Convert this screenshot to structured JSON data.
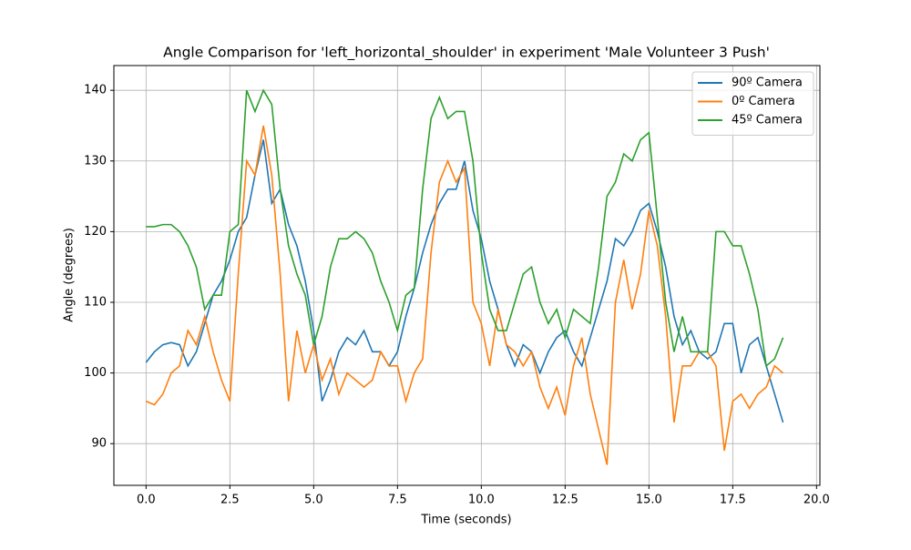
{
  "chart_data": {
    "type": "line",
    "title": "Angle Comparison for 'left_horizontal_shoulder' in experiment 'Male Volunteer 3 Push'",
    "x_label": "Time (seconds)",
    "y_label": "Angle (degrees)",
    "x": [
      0,
      0.25,
      0.5,
      0.75,
      1,
      1.25,
      1.5,
      1.75,
      2,
      2.25,
      2.5,
      2.75,
      3,
      3.25,
      3.5,
      3.75,
      4,
      4.25,
      4.5,
      4.75,
      5,
      5.25,
      5.5,
      5.75,
      6,
      6.25,
      6.5,
      6.75,
      7,
      7.25,
      7.5,
      7.75,
      8,
      8.25,
      8.5,
      8.75,
      9,
      9.25,
      9.5,
      9.75,
      10,
      10.25,
      10.5,
      10.75,
      11,
      11.25,
      11.5,
      11.75,
      12,
      12.25,
      12.5,
      12.75,
      13,
      13.25,
      13.5,
      13.75,
      14,
      14.25,
      14.5,
      14.75,
      15,
      15.25,
      15.5,
      15.75,
      16,
      16.25,
      16.5,
      16.75,
      17,
      17.25,
      17.5,
      17.75,
      18,
      18.25,
      18.5,
      18.75,
      19
    ],
    "series": [
      {
        "name": "90º Camera",
        "color": "#1f77b4",
        "values": [
          101.5,
          103,
          104,
          104.3,
          104,
          101,
          103,
          107,
          111,
          113,
          116,
          120,
          122,
          128,
          133,
          124,
          126,
          121,
          118,
          113,
          106,
          96,
          99,
          103,
          105,
          104,
          106,
          103,
          103,
          101,
          103,
          108,
          112,
          117,
          121,
          124,
          126,
          126,
          130,
          123,
          119,
          113,
          109,
          104,
          101,
          104,
          103,
          100,
          103,
          105,
          106,
          103,
          101,
          105,
          109,
          113,
          119,
          118,
          120,
          123,
          124,
          120,
          115,
          108,
          104,
          106,
          103,
          102,
          103,
          107,
          107,
          100,
          104,
          105,
          101,
          97,
          93
        ]
      },
      {
        "name": "0º Camera",
        "color": "#ff7f0e",
        "values": [
          96,
          95.5,
          97,
          100,
          101,
          106,
          104,
          108,
          103,
          99,
          96,
          114,
          130,
          128,
          135,
          128,
          114,
          96,
          106,
          100,
          104,
          99,
          102,
          97,
          100,
          99,
          98,
          99,
          103,
          101,
          101,
          96,
          100,
          102,
          117,
          127,
          130,
          127,
          129,
          110,
          107,
          101,
          109,
          104,
          103,
          101,
          103,
          98,
          95,
          98,
          94,
          101,
          105,
          97,
          92,
          87,
          110,
          116,
          109,
          114,
          123,
          118,
          108,
          93,
          101,
          101,
          103,
          103,
          101,
          89,
          96,
          97,
          95,
          97,
          98,
          101,
          100
        ]
      },
      {
        "name": "45º Camera",
        "color": "#2ca02c",
        "values": [
          120.7,
          120.7,
          121,
          121,
          120,
          118,
          115,
          109,
          111,
          111,
          120,
          121,
          140,
          137,
          140,
          138,
          126,
          118,
          114,
          111,
          104,
          108,
          115,
          119,
          119,
          120,
          119,
          117,
          113,
          110,
          106,
          111,
          112,
          126,
          136,
          139,
          136,
          137,
          137,
          130,
          117,
          109,
          106,
          106,
          110,
          114,
          115,
          110,
          107,
          109,
          105,
          109,
          108,
          107,
          115,
          125,
          127,
          131,
          130,
          133,
          134,
          122,
          110,
          103,
          108,
          103,
          103,
          103,
          120,
          120,
          118,
          118,
          114,
          109,
          101,
          102,
          105
        ]
      }
    ],
    "xlim": [
      -0.96,
      20.1
    ],
    "ylim": [
      84.1,
      143.5
    ],
    "xticks": [
      {
        "value": 0,
        "label": "0.0"
      },
      {
        "value": 2.5,
        "label": "2.5"
      },
      {
        "value": 5,
        "label": "5.0"
      },
      {
        "value": 7.5,
        "label": "7.5"
      },
      {
        "value": 10,
        "label": "10.0"
      },
      {
        "value": 12.5,
        "label": "12.5"
      },
      {
        "value": 15,
        "label": "15.0"
      },
      {
        "value": 17.5,
        "label": "17.5"
      },
      {
        "value": 20,
        "label": "20.0"
      }
    ],
    "yticks": [
      90,
      100,
      110,
      120,
      130,
      140
    ],
    "grid": true,
    "legend": "upper right"
  }
}
